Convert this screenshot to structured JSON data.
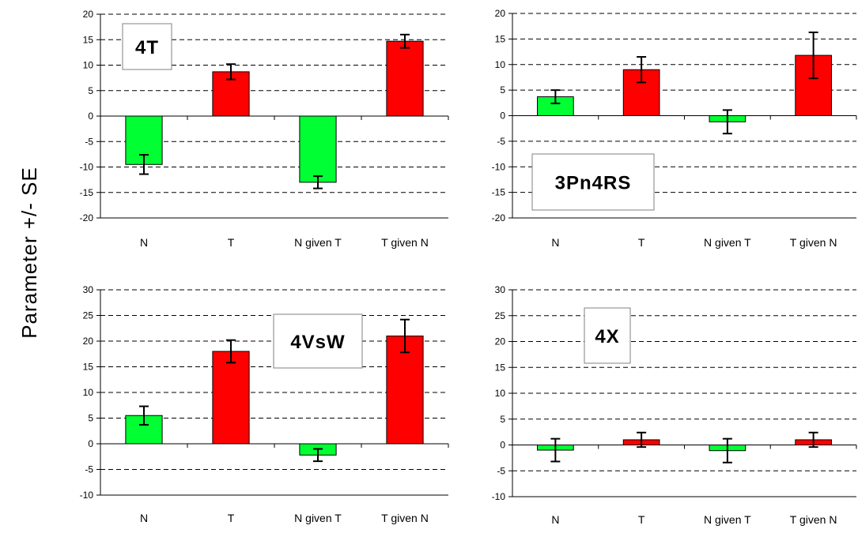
{
  "figure": {
    "ylabel": "Parameter +/- SE"
  },
  "colors": {
    "green": "#00ff33",
    "red": "#ff0000",
    "grid": "#000000",
    "box": "#808080"
  },
  "chart_data": [
    {
      "type": "bar",
      "title": "4T",
      "categories": [
        "N",
        "T",
        "N given T",
        "T given N"
      ],
      "values": [
        -9.5,
        8.7,
        -13,
        14.7
      ],
      "errors": [
        1.9,
        1.5,
        1.2,
        1.3
      ],
      "bar_colors": [
        "green",
        "red",
        "green",
        "red"
      ],
      "ylim": [
        -20,
        20
      ],
      "yticks": [
        20,
        15,
        10,
        5,
        0,
        -5,
        -10,
        -15,
        -20
      ],
      "grid": "dashed horizontal",
      "xlabel": "",
      "ylabel": ""
    },
    {
      "type": "bar",
      "title": "3Pn4RS",
      "categories": [
        "N",
        "T",
        "N given T",
        "T given N"
      ],
      "values": [
        3.7,
        9,
        -1.2,
        11.8
      ],
      "errors": [
        1.3,
        2.5,
        2.3,
        4.5
      ],
      "bar_colors": [
        "green",
        "red",
        "green",
        "red"
      ],
      "ylim": [
        -20,
        20
      ],
      "yticks": [
        20,
        15,
        10,
        5,
        0,
        -5,
        -10,
        -15,
        -20
      ],
      "grid": "dashed horizontal",
      "xlabel": "",
      "ylabel": ""
    },
    {
      "type": "bar",
      "title": "4VsW",
      "categories": [
        "N",
        "T",
        "N given T",
        "T given N"
      ],
      "values": [
        5.5,
        18,
        -2.2,
        21
      ],
      "errors": [
        1.8,
        2.2,
        1.2,
        3.2
      ],
      "bar_colors": [
        "green",
        "red",
        "green",
        "red"
      ],
      "ylim": [
        -10,
        30
      ],
      "yticks": [
        30,
        25,
        20,
        15,
        10,
        5,
        0,
        -5,
        -10
      ],
      "grid": "dashed horizontal",
      "xlabel": "",
      "ylabel": ""
    },
    {
      "type": "bar",
      "title": "4X",
      "categories": [
        "N",
        "T",
        "N given T",
        "T given N"
      ],
      "values": [
        -1,
        1,
        -1.1,
        1
      ],
      "errors": [
        2.2,
        1.4,
        2.3,
        1.4
      ],
      "bar_colors": [
        "green",
        "red",
        "green",
        "red"
      ],
      "ylim": [
        -10,
        30
      ],
      "yticks": [
        30,
        25,
        20,
        15,
        10,
        5,
        0,
        -5,
        -10
      ],
      "grid": "dashed horizontal",
      "xlabel": "",
      "ylabel": ""
    }
  ]
}
